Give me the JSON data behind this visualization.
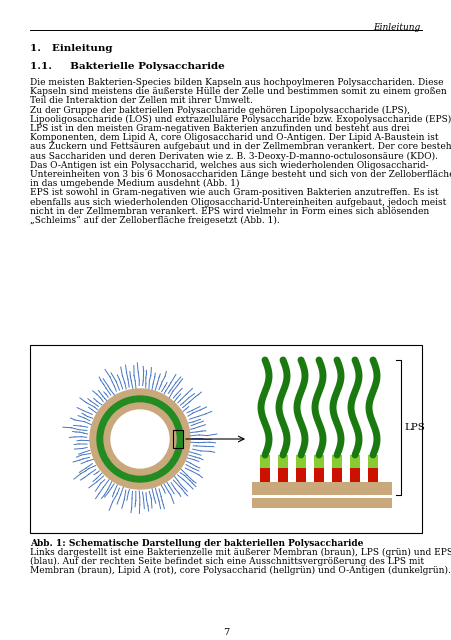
{
  "page_header_right": "Einleitung",
  "section1_title": "1.   Einleitung",
  "section11_title": "1.1.     Bakterielle Polysaccharide",
  "para1_lines": [
    "Die meisten Bakterien-Species bilden Kapseln aus hochpoylmeren Polysacchariden. Diese",
    "Kapseln sind meistens die äußerste Hülle der Zelle und bestimmen somit zu einem großen",
    "Teil die Interaktion der Zellen mit ihrer Umwelt."
  ],
  "para2_lines": [
    "Zu der Gruppe der bakteriellen Polysaccharide gehören Lipopolysaccharide (LPS),",
    "Lipooligosaccharide (LOS) und extrazelluläre Polysaccharide bzw. Exopolysaccharide (EPS).",
    "LPS ist in den meisten Gram-negativen Bakterien anzufinden und besteht aus drei",
    "Komponenten, dem Lipid A, core Oligosaccharid und O-Antigen. Der Lipid A-Baustein ist",
    "aus Zuckern und Fettsäuren aufgebaut und in der Zellmembran verankert. Der core besteht",
    "aus Sacchariden und deren Derivaten wie z. B. 3-Deoxy-D-manno-octulosonsäure (KDO).",
    "Das O-Antigen ist ein Polysaccharid, welches aus sich wiederholenden Oligosaccharid-",
    "Untereinheiten von 3 bis 6 Monosacchariden Länge besteht und sich von der Zelloberfläche",
    "in das umgebende Medium ausdehnt (Abb. 1)"
  ],
  "para3_lines": [
    "EPS ist sowohl in Gram-negativen wie auch Gram-positiven Bakterien anzutreffen. Es ist",
    "ebenfalls aus sich wiederholenden Oligosaccharid-Untereinheiten aufgebaut, jedoch meist",
    "nicht in der Zellmembran verankert. EPS wird vielmehr in Form eines sich ablösenden",
    "„Schleims“ auf der Zelloberfläche freigesetzt (Abb. 1)."
  ],
  "fig_caption_bold": "Abb. 1: Schematische Darstellung der bakteriellen Polysaccharide",
  "fig_caption_lines": [
    "Links dargestellt ist eine Bakterienzelle mit äußerer Membran (braun), LPS (grün) und EPS",
    "(blau). Auf der rechten Seite befindet sich eine Ausschnittsvergrößerung des LPS mit",
    "Membran (braun), Lipid A (rot), core Polysaccharid (hellgrün) und O-Antigen (dunkelgrün)."
  ],
  "page_number": "7",
  "lps_label": "LPS",
  "text_color": "#000000",
  "background_color": "#ffffff"
}
